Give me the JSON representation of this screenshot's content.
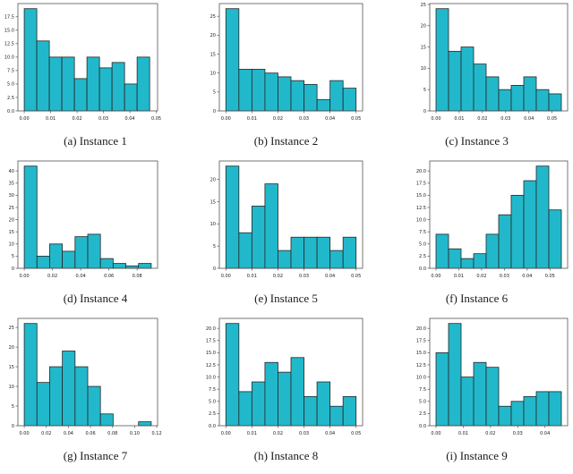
{
  "page": {
    "background": "#ffffff"
  },
  "colors": {
    "bar_fill": "#22b8cb",
    "bar_edge": "#262626",
    "spine": "#555555",
    "tick_label": "#1a1a1a",
    "caption": "#1a1a1a"
  },
  "chart_data": [
    {
      "type": "bar",
      "caption": "(a) Instance 1",
      "bin_start": 0,
      "bin_width": 0.00475,
      "values": [
        19,
        13,
        10,
        10,
        6,
        10,
        8,
        9,
        5,
        10
      ],
      "xticks": [
        0,
        0.01,
        0.02,
        0.03,
        0.04,
        0.05
      ],
      "yticks": [
        0,
        2.5,
        5,
        7.5,
        10,
        12.5,
        15,
        17.5
      ],
      "ytick_decimals": 1,
      "xlim": [
        -0.0024,
        0.0505
      ],
      "ylim": [
        0,
        19.95
      ],
      "grid": false,
      "legend": null
    },
    {
      "type": "bar",
      "caption": "(b) Instance 2",
      "bin_start": 0,
      "bin_width": 0.005,
      "values": [
        27,
        11,
        11,
        10,
        9,
        8,
        7,
        3,
        8,
        6
      ],
      "xticks": [
        0,
        0.01,
        0.02,
        0.03,
        0.04,
        0.05
      ],
      "yticks": [
        0,
        5,
        10,
        15,
        20,
        25
      ],
      "ytick_decimals": 0,
      "xlim": [
        -0.0025,
        0.0525
      ],
      "ylim": [
        0,
        28.35
      ],
      "grid": false,
      "legend": null
    },
    {
      "type": "bar",
      "caption": "(c) Instance 3",
      "bin_start": 0,
      "bin_width": 0.0054,
      "values": [
        24,
        14,
        15,
        11,
        8,
        5,
        6,
        8,
        5,
        4
      ],
      "xticks": [
        0,
        0.01,
        0.02,
        0.03,
        0.04,
        0.05
      ],
      "yticks": [
        0,
        5,
        10,
        15,
        20,
        25
      ],
      "ytick_decimals": 0,
      "xlim": [
        -0.0027,
        0.0567
      ],
      "ylim": [
        0,
        25.2
      ],
      "grid": false,
      "legend": null
    },
    {
      "type": "bar",
      "caption": "(d) Instance 4",
      "bin_start": 0,
      "bin_width": 0.009,
      "values": [
        42,
        5,
        10,
        7,
        13,
        14,
        4,
        2,
        1,
        2
      ],
      "xticks": [
        0,
        0.02,
        0.04,
        0.06,
        0.08
      ],
      "yticks": [
        0,
        5,
        10,
        15,
        20,
        25,
        30,
        35,
        40
      ],
      "ytick_decimals": 0,
      "xlim": [
        -0.0045,
        0.0945
      ],
      "ylim": [
        0,
        44.1
      ],
      "grid": false,
      "legend": null
    },
    {
      "type": "bar",
      "caption": "(e) Instance 5",
      "bin_start": 0,
      "bin_width": 0.005,
      "values": [
        23,
        8,
        14,
        19,
        4,
        7,
        7,
        7,
        4,
        7
      ],
      "xticks": [
        0,
        0.01,
        0.02,
        0.03,
        0.04,
        0.05
      ],
      "yticks": [
        0,
        5,
        10,
        15,
        20
      ],
      "ytick_decimals": 0,
      "xlim": [
        -0.0025,
        0.0525
      ],
      "ylim": [
        0,
        24.15
      ],
      "grid": false,
      "legend": null
    },
    {
      "type": "bar",
      "caption": "(f) Instance 6",
      "bin_start": 0,
      "bin_width": 0.0055,
      "values": [
        7,
        4,
        2,
        3,
        7,
        11,
        15,
        18,
        21,
        12
      ],
      "xticks": [
        0,
        0.01,
        0.02,
        0.03,
        0.04,
        0.05
      ],
      "yticks": [
        0,
        2.5,
        5,
        7.5,
        10,
        12.5,
        15,
        17.5,
        20
      ],
      "ytick_decimals": 1,
      "xlim": [
        -0.00275,
        0.05775
      ],
      "ylim": [
        0,
        22.05
      ],
      "grid": false,
      "legend": null
    },
    {
      "type": "bar",
      "caption": "(g) Instance 7",
      "bin_start": 0,
      "bin_width": 0.0115,
      "values": [
        26,
        11,
        15,
        19,
        15,
        10,
        3,
        0,
        0,
        1
      ],
      "xticks": [
        0,
        0.02,
        0.04,
        0.06,
        0.08,
        0.1,
        0.12
      ],
      "yticks": [
        0,
        5,
        10,
        15,
        20,
        25
      ],
      "ytick_decimals": 0,
      "xlim": [
        -0.00575,
        0.12075
      ],
      "ylim": [
        0,
        27.3
      ],
      "grid": false,
      "legend": null
    },
    {
      "type": "bar",
      "caption": "(h) Instance 8",
      "bin_start": 0,
      "bin_width": 0.005,
      "values": [
        21,
        7,
        9,
        13,
        11,
        14,
        6,
        9,
        4,
        6
      ],
      "xticks": [
        0,
        0.01,
        0.02,
        0.03,
        0.04,
        0.05
      ],
      "yticks": [
        0,
        2.5,
        5,
        7.5,
        10,
        12.5,
        15,
        17.5,
        20
      ],
      "ytick_decimals": 1,
      "xlim": [
        -0.0025,
        0.0525
      ],
      "ylim": [
        0,
        22.05
      ],
      "grid": false,
      "legend": null
    },
    {
      "type": "bar",
      "caption": "(i) Instance 9",
      "bin_start": 0,
      "bin_width": 0.0046,
      "values": [
        15,
        21,
        10,
        13,
        12,
        4,
        5,
        6,
        7,
        7
      ],
      "xticks": [
        0,
        0.01,
        0.02,
        0.03,
        0.04
      ],
      "yticks": [
        0,
        2.5,
        5,
        7.5,
        10,
        12.5,
        15,
        17.5,
        20
      ],
      "ytick_decimals": 1,
      "xlim": [
        -0.0023,
        0.0483
      ],
      "ylim": [
        0,
        22.05
      ],
      "grid": false,
      "legend": null
    }
  ]
}
